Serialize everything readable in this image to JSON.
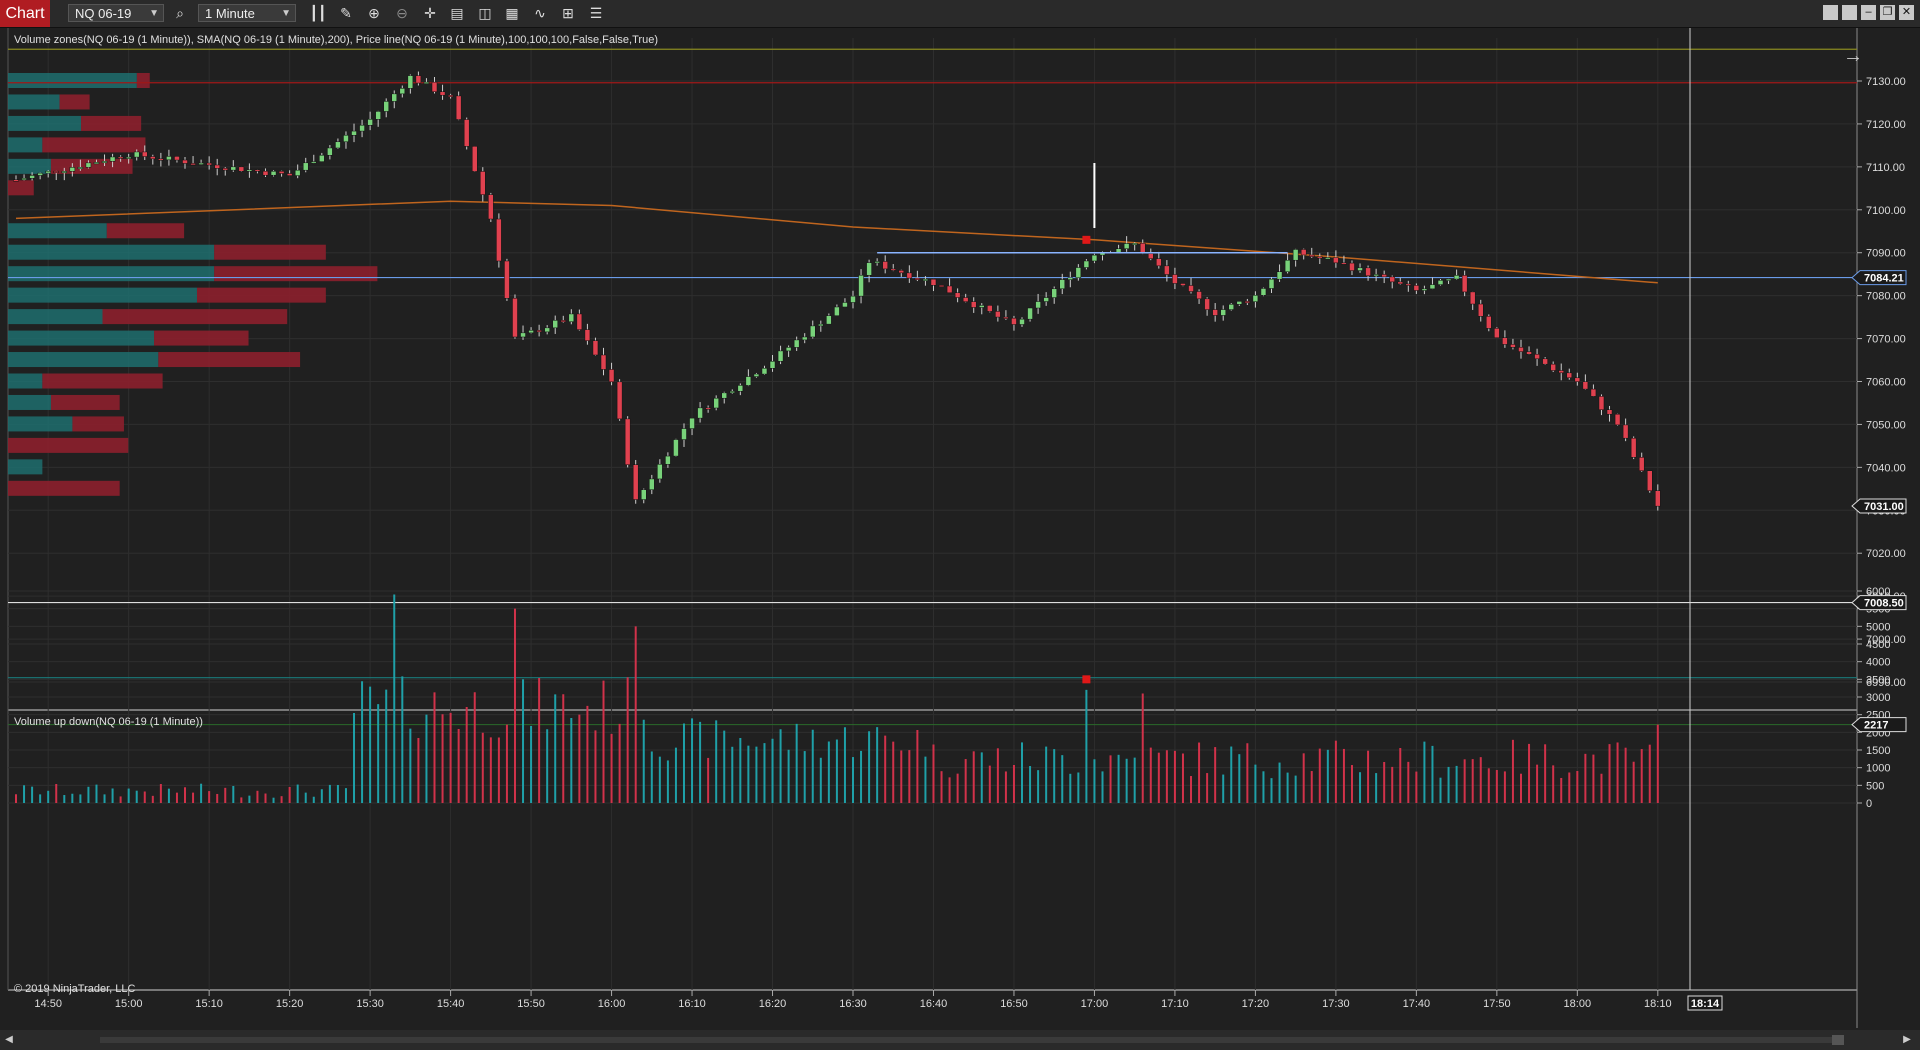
{
  "toolbar": {
    "chart_tab": "Chart",
    "instrument": "NQ 06-19",
    "interval": "1 Minute",
    "tools": [
      "search-icon",
      "bar-style-icon",
      "draw-pencil-icon",
      "zoom-in-icon",
      "zoom-out-icon",
      "crosshair-icon",
      "data-box-icon",
      "properties-icon",
      "indicators-icon",
      "strategies-icon",
      "overlay-icon",
      "list-icon"
    ],
    "window_buttons": [
      "tile-icon",
      "restore-icon",
      "minimize-icon",
      "maximize-icon",
      "close-icon"
    ]
  },
  "price_panel": {
    "legend": "Volume zones(NQ 06-19 (1 Minute)), SMA(NQ 06-19 (1 Minute),200), Price line(NQ 06-19 (1 Minute),100,100,100,False,False,True)",
    "price_ticks": [
      "7130.00",
      "7120.00",
      "7110.00",
      "7100.00",
      "7090.00",
      "7080.00",
      "7070.00",
      "7060.00",
      "7050.00",
      "7040.00",
      "7030.00",
      "7020.00",
      "7010.00",
      "7000.00",
      "6990.00"
    ],
    "markers": [
      {
        "label": "7084.21",
        "value": 7084.21,
        "color": "#6a9be8"
      },
      {
        "label": "7031.00",
        "value": 7031.0,
        "color": "#dddddd"
      },
      {
        "label": "7008.50",
        "value": 7008.5,
        "color": "#dddddd"
      }
    ],
    "horizontal_lines": [
      {
        "value": 7137.4,
        "color": "#8a8a20"
      },
      {
        "value": 7129.6,
        "color": "#a01818"
      },
      {
        "value": 7084.21,
        "color": "#6a9be8"
      },
      {
        "value": 7008.5,
        "color": "#dddddd"
      },
      {
        "value": 6991.0,
        "color": "#1a7a7a"
      }
    ]
  },
  "volume_panel": {
    "legend": "Volume up down(NQ 06-19 (1 Minute))",
    "ticks": [
      "6000",
      "5500",
      "5000",
      "4500",
      "4000",
      "3500",
      "3000",
      "2500",
      "2000",
      "1500",
      "1000",
      "500",
      "0"
    ],
    "marker": {
      "label": "2217",
      "value": 2217
    },
    "copyright": "© 2019 NinjaTrader, LLC"
  },
  "time_axis": {
    "labels": [
      "14:50",
      "15:00",
      "15:10",
      "15:20",
      "15:30",
      "15:40",
      "15:50",
      "16:00",
      "16:10",
      "16:20",
      "16:30",
      "16:40",
      "16:50",
      "17:00",
      "17:10",
      "17:20",
      "17:30",
      "17:40",
      "17:50",
      "18:00",
      "18:10"
    ],
    "cursor_label": "18:14"
  },
  "chart_data": {
    "type": "candlestick",
    "instrument": "NQ 06-19",
    "interval": "1 Minute",
    "price_range": [
      6985,
      7142
    ],
    "volume_range": [
      0,
      6200
    ],
    "key_points": [
      {
        "time": "14:46",
        "price": 7107
      },
      {
        "time": "15:00",
        "price": 7113
      },
      {
        "time": "15:20",
        "price": 7108
      },
      {
        "time": "15:30",
        "price": 7121
      },
      {
        "time": "15:35",
        "price": 7131
      },
      {
        "time": "15:40",
        "price": 7126
      },
      {
        "time": "15:45",
        "price": 7098
      },
      {
        "time": "15:48",
        "price": 7070
      },
      {
        "time": "15:55",
        "price": 7075
      },
      {
        "time": "16:00",
        "price": 7060
      },
      {
        "time": "16:03",
        "price": 7032
      },
      {
        "time": "16:10",
        "price": 7052
      },
      {
        "time": "16:20",
        "price": 7065
      },
      {
        "time": "16:30",
        "price": 7080
      },
      {
        "time": "16:32",
        "price": 7088
      },
      {
        "time": "16:40",
        "price": 7083
      },
      {
        "time": "16:50",
        "price": 7073
      },
      {
        "time": "17:00",
        "price": 7090
      },
      {
        "time": "17:05",
        "price": 7092
      },
      {
        "time": "17:10",
        "price": 7083
      },
      {
        "time": "17:15",
        "price": 7076
      },
      {
        "time": "17:20",
        "price": 7080
      },
      {
        "time": "17:25",
        "price": 7090
      },
      {
        "time": "17:30",
        "price": 7088
      },
      {
        "time": "17:40",
        "price": 7081
      },
      {
        "time": "17:45",
        "price": 7084
      },
      {
        "time": "17:50",
        "price": 7070
      },
      {
        "time": "18:00",
        "price": 7060
      },
      {
        "time": "18:05",
        "price": 7050
      },
      {
        "time": "18:10",
        "price": 7031
      }
    ],
    "sma_200": [
      {
        "time": "14:46",
        "value": 7098
      },
      {
        "time": "15:40",
        "value": 7102
      },
      {
        "time": "16:00",
        "value": 7101
      },
      {
        "time": "16:30",
        "value": 7096
      },
      {
        "time": "17:00",
        "value": 7093
      },
      {
        "time": "17:30",
        "value": 7089
      },
      {
        "time": "18:10",
        "value": 7083
      }
    ],
    "volume_profile": [
      {
        "price": 7130,
        "up": 1500,
        "down": 150
      },
      {
        "price": 7125,
        "up": 600,
        "down": 350
      },
      {
        "price": 7120,
        "up": 850,
        "down": 700
      },
      {
        "price": 7115,
        "up": 400,
        "down": 1200
      },
      {
        "price": 7110,
        "up": 500,
        "down": 950
      },
      {
        "price": 7105,
        "up": 0,
        "down": 300
      },
      {
        "price": 7095,
        "up": 1150,
        "down": 900
      },
      {
        "price": 7090,
        "up": 2400,
        "down": 1300
      },
      {
        "price": 7085,
        "up": 2400,
        "down": 1900
      },
      {
        "price": 7080,
        "up": 2200,
        "down": 1500
      },
      {
        "price": 7075,
        "up": 1100,
        "down": 2150
      },
      {
        "price": 7070,
        "up": 1700,
        "down": 1100
      },
      {
        "price": 7065,
        "up": 1750,
        "down": 1650
      },
      {
        "price": 7060,
        "up": 400,
        "down": 1400
      },
      {
        "price": 7055,
        "up": 500,
        "down": 800
      },
      {
        "price": 7050,
        "up": 750,
        "down": 600
      },
      {
        "price": 7045,
        "up": 0,
        "down": 1400
      },
      {
        "price": 7040,
        "up": 400,
        "down": 0
      },
      {
        "price": 7035,
        "up": 0,
        "down": 1300
      }
    ],
    "volume_peaks": [
      {
        "time": "15:33",
        "value": 5900
      },
      {
        "time": "15:48",
        "value": 5500
      },
      {
        "time": "16:03",
        "value": 5000
      },
      {
        "time": "16:59",
        "value": 3200
      },
      {
        "time": "17:06",
        "value": 3100
      },
      {
        "time": "18:10",
        "value": 2217
      }
    ],
    "signal_marker": {
      "time": "16:59",
      "price": 7093
    }
  }
}
